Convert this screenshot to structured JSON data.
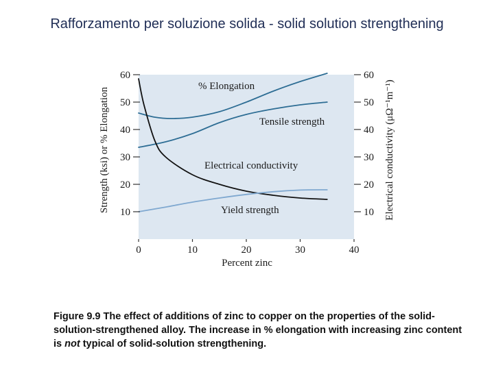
{
  "slide": {
    "title": "Rafforzamento per soluzione solida - solid solution strengthening"
  },
  "caption": {
    "prefix": "Figure 9.9 The effect of additions of zinc to copper on the properties of the solid-solution-strengthened alloy. The increase in % elongation with increasing zinc content is ",
    "emphasis": "not",
    "suffix": " typical of solid-solution strengthening."
  },
  "colors": {
    "plot_bg": "#dde7f1",
    "dark_blue": "#2d6d94",
    "light_blue": "#7fa8d0",
    "black": "#111111",
    "axis": "#333333"
  },
  "chart_data": {
    "type": "line",
    "xlabel": "Percent zinc",
    "ylabel_left": "Strength (ksi) or % Elongation",
    "ylabel_right": "Electrical conductivity (μΩ⁻¹m⁻¹)",
    "xlim": [
      0,
      40
    ],
    "ylim": [
      0,
      60
    ],
    "x_ticks": [
      0,
      10,
      20,
      30,
      40
    ],
    "y_ticks": [
      10,
      20,
      30,
      40,
      50,
      60
    ],
    "grid": false,
    "series": [
      {
        "name": "% Elongation",
        "color": "#2d6d94",
        "x": [
          0,
          3,
          6,
          10,
          15,
          20,
          25,
          30,
          35
        ],
        "y": [
          46,
          44.5,
          44,
          44.5,
          46.5,
          50,
          54,
          57.5,
          60.5
        ]
      },
      {
        "name": "Tensile strength",
        "color": "#2d6d94",
        "x": [
          0,
          5,
          10,
          15,
          20,
          25,
          30,
          35
        ],
        "y": [
          33.5,
          35.5,
          38.5,
          42.5,
          45.5,
          47.5,
          49,
          50
        ]
      },
      {
        "name": "Electrical conductivity",
        "color": "#111111",
        "x": [
          0,
          1,
          3,
          5,
          10,
          15,
          20,
          25,
          30,
          35
        ],
        "y": [
          58.5,
          49,
          36,
          30,
          23.5,
          20,
          17.5,
          16,
          15,
          14.5
        ]
      },
      {
        "name": "Yield strength",
        "color": "#7fa8d0",
        "x": [
          0,
          5,
          10,
          15,
          20,
          25,
          30,
          35
        ],
        "y": [
          10,
          11.7,
          13.5,
          15,
          16.3,
          17.3,
          17.9,
          18
        ]
      }
    ]
  }
}
